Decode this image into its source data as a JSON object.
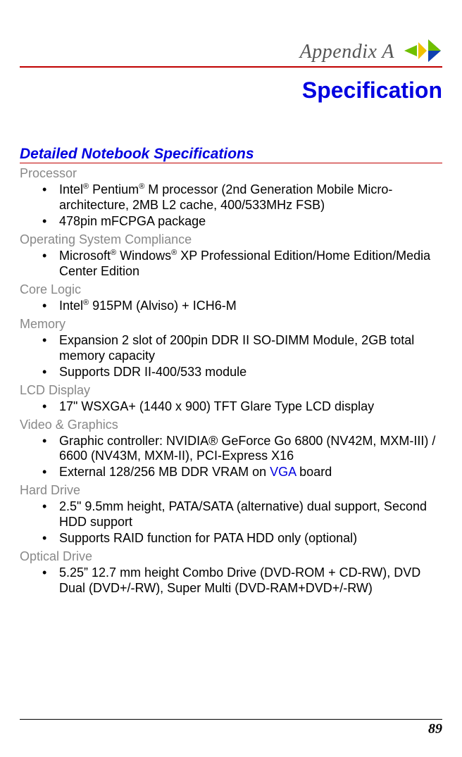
{
  "header": {
    "appendix_label": "Appendix  A",
    "rule_color": "#c00000",
    "icon_colors": {
      "green": "#6fbf00",
      "yellow": "#f0c000",
      "blue": "#1040b0"
    }
  },
  "page_title": "Specification",
  "section_title": "Detailed Notebook Specifications",
  "title_color": "#0000e0",
  "subsection_color": "#888888",
  "link_color": "#0000e0",
  "sections": {
    "processor": {
      "heading": "Processor",
      "items": [
        {
          "html": "Intel<span class='sup'>®</span> Pentium<span class='sup'>®</span> M processor (2nd Generation Mobile Micro-architecture, 2MB L2 cache, 400/533MHz FSB)"
        },
        {
          "text": "478pin mFCPGA package"
        }
      ]
    },
    "os": {
      "heading": "Operating System Compliance",
      "items": [
        {
          "html": "Microsoft<span class='sup'>®</span> Windows<span class='sup'>®</span> XP Professional Edition/Home Edition/Media Center Edition"
        }
      ]
    },
    "core_logic": {
      "heading": "Core Logic",
      "items": [
        {
          "html": "Intel<span class='sup'>®</span> 915PM (Alviso) + ICH6-M"
        }
      ]
    },
    "memory": {
      "heading": "Memory",
      "items": [
        {
          "text": "Expansion 2 slot of 200pin DDR II SO-DIMM Module, 2GB total memory capacity"
        },
        {
          "text": "Supports DDR II-400/533 module"
        }
      ]
    },
    "lcd": {
      "heading": "LCD Display",
      "items": [
        {
          "text": "17\" WSXGA+ (1440 x 900) TFT Glare Type LCD display"
        }
      ]
    },
    "video": {
      "heading": "Video & Graphics",
      "items": [
        {
          "text": "Graphic controller: NVIDIA® GeForce Go 6800 (NV42M, MXM-III) / 6600 (NV43M, MXM-II), PCI-Express X16"
        },
        {
          "html": "External 128/256 MB DDR VRAM on <span class='linklike'>VGA</span> board"
        }
      ]
    },
    "hdd": {
      "heading": "Hard Drive",
      "items": [
        {
          "text": "2.5\" 9.5mm height, PATA/SATA (alternative) dual support, Second HDD support"
        },
        {
          "text": "Supports RAID function for PATA HDD only (optional)"
        }
      ]
    },
    "optical": {
      "heading": "Optical Drive",
      "items": [
        {
          "text": "5.25” 12.7 mm height Combo Drive (DVD-ROM + CD-RW), DVD Dual (DVD+/-RW), Super Multi (DVD-RAM+DVD+/-RW)"
        }
      ]
    }
  },
  "footer": {
    "page_number": "89"
  }
}
